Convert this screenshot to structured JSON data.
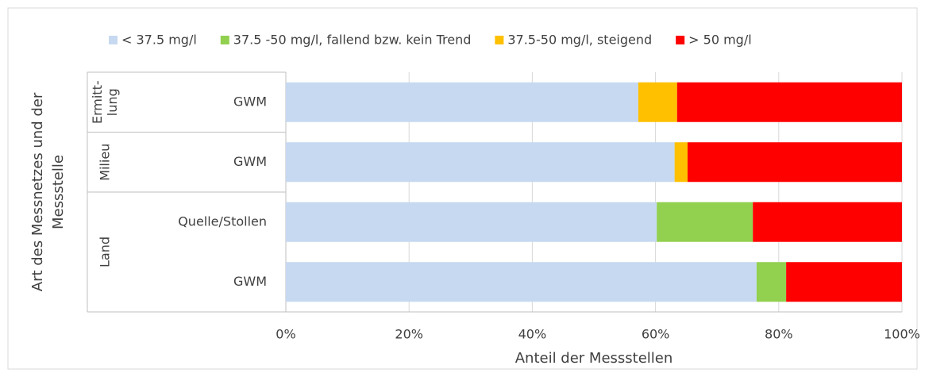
{
  "chart_data": {
    "type": "stacked_bar_horizontal",
    "y_label": [
      "Art des Messnetzes und der",
      "Messstelle"
    ],
    "x_label": "Anteil der Messstellen",
    "groups": [
      {
        "label": [
          "Ermitt-",
          "lung"
        ],
        "categories": [
          "GWM"
        ]
      },
      {
        "label": [
          "Milieu"
        ],
        "categories": [
          "GWM"
        ]
      },
      {
        "label": [
          "Land"
        ],
        "categories": [
          "Quelle/Stollen",
          "GWM"
        ]
      }
    ],
    "series": [
      {
        "name": "< 37.5 mg/l",
        "color": "#c6d9f0",
        "values": [
          57.2,
          63.1,
          60.2,
          76.4
        ]
      },
      {
        "name": "37.5 -50 mg/l, fallend bzw. kein Trend",
        "color": "#92d050",
        "values": [
          0,
          0,
          15.6,
          4.8
        ]
      },
      {
        "name": "37.5-50 mg/l, steigend",
        "color": "#ffc000",
        "values": [
          6.3,
          2.1,
          0,
          0
        ]
      },
      {
        "name": "> 50 mg/l",
        "color": "#ff0000",
        "values": [
          36.5,
          34.8,
          24.2,
          18.8
        ]
      }
    ],
    "xlim": [
      0,
      100
    ],
    "xticks": [
      {
        "value": 0,
        "label": "0%"
      },
      {
        "value": 20,
        "label": "20%"
      },
      {
        "value": 40,
        "label": "40%"
      },
      {
        "value": 60,
        "label": "60%"
      },
      {
        "value": 80,
        "label": "80%"
      },
      {
        "value": 100,
        "label": "100%"
      }
    ],
    "grid": true,
    "legend": "top"
  }
}
